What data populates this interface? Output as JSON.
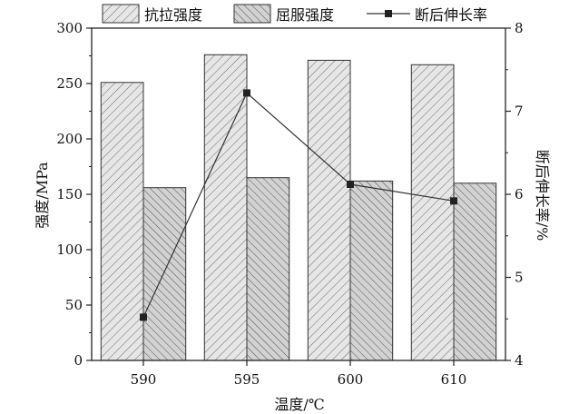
{
  "chart_data": {
    "type": "bar",
    "categories": [
      "590",
      "595",
      "600",
      "610"
    ],
    "series": [
      {
        "name": "抗拉强度",
        "kind": "bar",
        "axis": "left",
        "pattern": "diagonal-right",
        "values": [
          251,
          276,
          271,
          267
        ]
      },
      {
        "name": "屈服强度",
        "kind": "bar",
        "axis": "left",
        "pattern": "diagonal-left",
        "values": [
          156,
          165,
          162,
          160
        ]
      },
      {
        "name": "断后伸长率",
        "kind": "line",
        "axis": "right",
        "marker": "square",
        "values": [
          4.52,
          7.22,
          6.12,
          5.92
        ]
      }
    ],
    "xlabel": "温度/℃",
    "ylabel": "强度/MPa",
    "y2label": "断后伸长率/%",
    "ylim": [
      0,
      300
    ],
    "y2lim": [
      4,
      8
    ],
    "yticks": [
      0,
      50,
      100,
      150,
      200,
      250,
      300
    ],
    "y2ticks": [
      4,
      5,
      6,
      7,
      8
    ],
    "grid": false,
    "legend_position": "top"
  }
}
